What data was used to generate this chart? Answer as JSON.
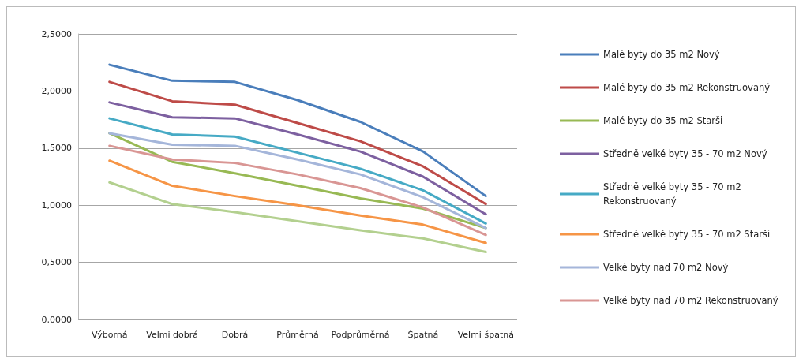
{
  "chart_data": {
    "type": "line",
    "categories": [
      "Výborná",
      "Velmi dobrá",
      "Dobrá",
      "Průměrná",
      "Podprůměrná",
      "Špatná",
      "Velmi špatná"
    ],
    "series": [
      {
        "name": "Malé byty do 35 m2 Nový",
        "color": "#4a7ebb",
        "values": [
          2.23,
          2.09,
          2.08,
          1.92,
          1.73,
          1.47,
          1.08
        ]
      },
      {
        "name": "Malé byty do 35 m2 Rekonstruovaný",
        "color": "#be4b48",
        "values": [
          2.08,
          1.91,
          1.88,
          1.72,
          1.56,
          1.34,
          1.01
        ]
      },
      {
        "name": "Malé byty do 35 m2 Starši",
        "color": "#98b954",
        "values": [
          1.63,
          1.38,
          1.28,
          1.17,
          1.06,
          0.97,
          0.8
        ]
      },
      {
        "name": "Středně velké byty 35 - 70 m2 Nový",
        "color": "#7d60a0",
        "values": [
          1.9,
          1.77,
          1.76,
          1.62,
          1.47,
          1.25,
          0.92
        ]
      },
      {
        "name": "Středně velké byty 35 - 70 m2 Rekonstruovaný",
        "color": "#46aac5",
        "values": [
          1.76,
          1.62,
          1.6,
          1.46,
          1.32,
          1.13,
          0.84
        ]
      },
      {
        "name": "Středně velké byty 35 - 70 m2 Starši",
        "color": "#f69546",
        "values": [
          1.39,
          1.17,
          1.08,
          1.0,
          0.91,
          0.83,
          0.67
        ]
      },
      {
        "name": "Velké byty nad 70 m2 Nový",
        "color": "#a5b6da",
        "values": [
          1.63,
          1.53,
          1.52,
          1.4,
          1.27,
          1.07,
          0.8
        ]
      },
      {
        "name": "Velké byty nad 70 m2 Rekonstruovaný",
        "color": "#d99694",
        "values": [
          1.52,
          1.4,
          1.37,
          1.27,
          1.15,
          0.98,
          0.74
        ]
      },
      {
        "name": null,
        "color": "#b3d08f",
        "values": [
          1.2,
          1.01,
          0.94,
          0.86,
          0.78,
          0.71,
          0.59
        ]
      }
    ],
    "ylim": [
      0,
      2.5
    ],
    "yticks": [
      {
        "value": 0,
        "label": "0,0000"
      },
      {
        "value": 0.5,
        "label": "0,5000"
      },
      {
        "value": 1,
        "label": "1,0000"
      },
      {
        "value": 1.5,
        "label": "1,5000"
      },
      {
        "value": 2,
        "label": "2,0000"
      },
      {
        "value": 2.5,
        "label": "2,5000"
      }
    ],
    "grid": "y",
    "legend": "right",
    "marker": "none",
    "line_style": "solid"
  }
}
